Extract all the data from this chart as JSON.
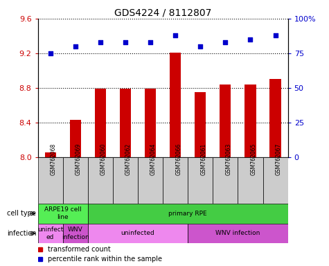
{
  "title": "GDS4224 / 8112807",
  "samples": [
    "GSM762068",
    "GSM762069",
    "GSM762060",
    "GSM762062",
    "GSM762064",
    "GSM762066",
    "GSM762061",
    "GSM762063",
    "GSM762065",
    "GSM762067"
  ],
  "bar_values": [
    8.05,
    8.43,
    8.79,
    8.79,
    8.79,
    9.21,
    8.75,
    8.84,
    8.84,
    8.9
  ],
  "percentile_values": [
    75,
    80,
    83,
    83,
    83,
    88,
    80,
    83,
    85,
    88
  ],
  "ylim_left": [
    8.0,
    9.6
  ],
  "ylim_right": [
    0,
    100
  ],
  "yticks_left": [
    8.0,
    8.4,
    8.8,
    9.2,
    9.6
  ],
  "yticks_right": [
    0,
    25,
    50,
    75,
    100
  ],
  "bar_color": "#cc0000",
  "dot_color": "#0000cc",
  "cell_type_groups": [
    {
      "label": "ARPE19 cell\nline",
      "start": 0,
      "end": 2,
      "color": "#55ee55"
    },
    {
      "label": "primary RPE",
      "start": 2,
      "end": 10,
      "color": "#44cc44"
    }
  ],
  "infection_groups": [
    {
      "label": "uninfect\ned",
      "start": 0,
      "end": 1,
      "color": "#ee88ee"
    },
    {
      "label": "WNV\ninfection",
      "start": 1,
      "end": 2,
      "color": "#cc55cc"
    },
    {
      "label": "uninfected",
      "start": 2,
      "end": 6,
      "color": "#ee88ee"
    },
    {
      "label": "WNV infection",
      "start": 6,
      "end": 10,
      "color": "#cc55cc"
    }
  ],
  "legend_items": [
    {
      "color": "#cc0000",
      "label": "transformed count"
    },
    {
      "color": "#0000cc",
      "label": "percentile rank within the sample"
    }
  ],
  "tick_color_left": "#cc0000",
  "tick_color_right": "#0000cc",
  "sample_bg_color": "#cccccc",
  "dotted_line_color": "#000000"
}
